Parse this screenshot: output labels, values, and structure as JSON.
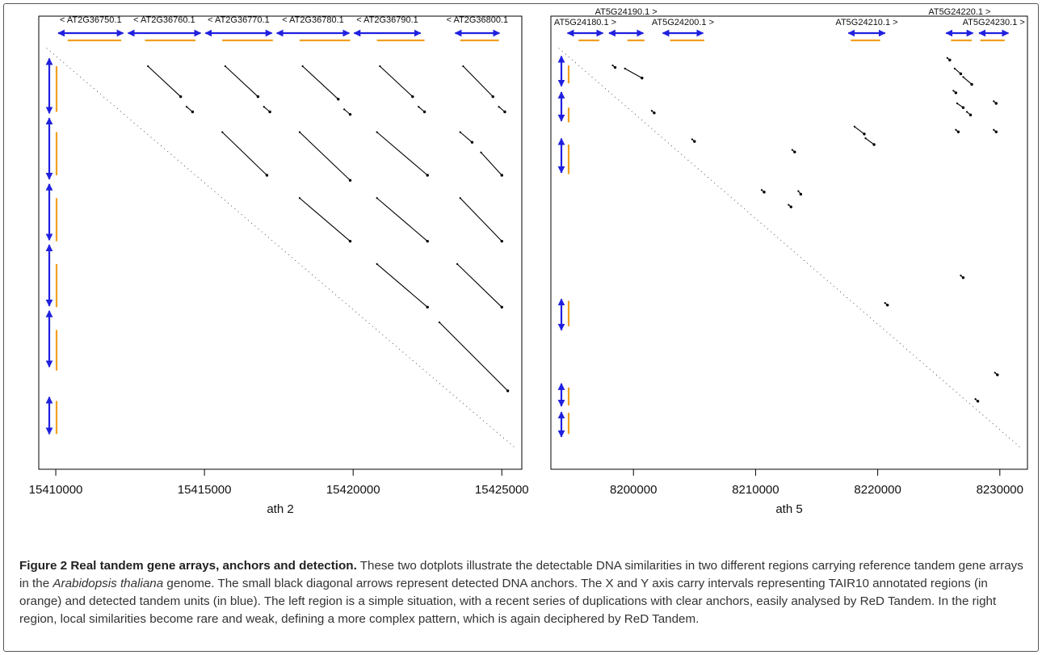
{
  "caption": {
    "label": "Figure 2",
    "title": "Real tandem gene arrays, anchors and detection.",
    "text_1": "These two dotplots illustrate the detectable DNA similarities in two different regions carrying reference tandem gene arrays in the",
    "species": "Arabidopsis thaliana",
    "text_2": "genome. The small black diagonal arrows represent detected DNA anchors. The X and Y axis carry intervals representing TAIR10 annotated regions (in orange) and detected tandem units (in blue). The left region is a simple situation, with a recent series of duplications with clear anchors, easily analysed by ReD Tandem. In the right region, local similarities become rare and weak, defining a more complex pattern, which is again deciphered by ReD Tandem."
  },
  "colors": {
    "annotated": "#f0a020",
    "tandem": "#2020e0",
    "anchor": "#000000"
  },
  "chart_data": [
    {
      "type": "scatter",
      "xlabel": "ath 2",
      "xlim": [
        15409700,
        15425400
      ],
      "ylim": [
        15409700,
        15425400
      ],
      "xticks": [
        15410000,
        15415000,
        15420000,
        15425000
      ],
      "tick_labels": [
        "15410000",
        "15415000",
        "15420000",
        "15425000"
      ],
      "genes": [
        {
          "name": "< AT2G36750.1",
          "start": 15410000,
          "end": 15412350
        },
        {
          "name": "< AT2G36760.1",
          "start": 15412350,
          "end": 15414950
        },
        {
          "name": "< AT2G36770.1",
          "start": 15414950,
          "end": 15417350
        },
        {
          "name": "< AT2G36780.1",
          "start": 15417350,
          "end": 15419950
        },
        {
          "name": "< AT2G36790.1",
          "start": 15419950,
          "end": 15422350
        },
        {
          "name": "< AT2G36800.1",
          "start": 15423350,
          "end": 15425000
        }
      ],
      "annotations": [
        {
          "start": 15410400,
          "end": 15412200
        },
        {
          "start": 15413000,
          "end": 15414700
        },
        {
          "start": 15415600,
          "end": 15417300
        },
        {
          "start": 15418200,
          "end": 15419900
        },
        {
          "start": 15420800,
          "end": 15422400
        },
        {
          "start": 15423600,
          "end": 15424900
        }
      ],
      "anchors": [
        {
          "x1": 15413100,
          "y1": 15410400,
          "x2": 15414200,
          "y2": 15411600
        },
        {
          "x1": 15414400,
          "y1": 15412000,
          "x2": 15414600,
          "y2": 15412200
        },
        {
          "x1": 15415700,
          "y1": 15410400,
          "x2": 15416800,
          "y2": 15411600
        },
        {
          "x1": 15417000,
          "y1": 15412000,
          "x2": 15417200,
          "y2": 15412200
        },
        {
          "x1": 15418300,
          "y1": 15410400,
          "x2": 15419500,
          "y2": 15411700
        },
        {
          "x1": 15419700,
          "y1": 15412100,
          "x2": 15419900,
          "y2": 15412300
        },
        {
          "x1": 15420900,
          "y1": 15410400,
          "x2": 15422000,
          "y2": 15411600
        },
        {
          "x1": 15422200,
          "y1": 15412000,
          "x2": 15422400,
          "y2": 15412200
        },
        {
          "x1": 15423700,
          "y1": 15410400,
          "x2": 15424700,
          "y2": 15411600
        },
        {
          "x1": 15424900,
          "y1": 15412000,
          "x2": 15425100,
          "y2": 15412200
        },
        {
          "x1": 15415600,
          "y1": 15413000,
          "x2": 15417100,
          "y2": 15414700
        },
        {
          "x1": 15418200,
          "y1": 15413000,
          "x2": 15419900,
          "y2": 15414900
        },
        {
          "x1": 15420800,
          "y1": 15413000,
          "x2": 15422500,
          "y2": 15414700
        },
        {
          "x1": 15423600,
          "y1": 15413000,
          "x2": 15424000,
          "y2": 15413400
        },
        {
          "x1": 15424300,
          "y1": 15413800,
          "x2": 15425000,
          "y2": 15414700
        },
        {
          "x1": 15418200,
          "y1": 15415600,
          "x2": 15419900,
          "y2": 15417300
        },
        {
          "x1": 15420800,
          "y1": 15415600,
          "x2": 15422500,
          "y2": 15417300
        },
        {
          "x1": 15423600,
          "y1": 15415600,
          "x2": 15425000,
          "y2": 15417300
        },
        {
          "x1": 15420800,
          "y1": 15418200,
          "x2": 15422500,
          "y2": 15419900
        },
        {
          "x1": 15423500,
          "y1": 15418200,
          "x2": 15425000,
          "y2": 15419900
        },
        {
          "x1": 15422900,
          "y1": 15420500,
          "x2": 15425200,
          "y2": 15423200
        }
      ]
    },
    {
      "type": "scatter",
      "xlabel": "ath 5",
      "xlim": [
        8193900,
        8231600
      ],
      "ylim": [
        8193900,
        8231600
      ],
      "xticks": [
        8200000,
        8210000,
        8220000,
        8230000
      ],
      "tick_labels": [
        "8200000",
        "8210000",
        "8220000",
        "8230000"
      ],
      "genes": [
        {
          "name": "AT5G24180.1 >",
          "start": 8194400,
          "end": 8197700
        },
        {
          "name": "AT5G24190.1 >",
          "start": 8197800,
          "end": 8201000
        },
        {
          "name": "AT5G24200.1 >",
          "start": 8202200,
          "end": 8205900
        },
        {
          "name": "AT5G24210.1 >",
          "start": 8217400,
          "end": 8220800
        },
        {
          "name": "AT5G24220.1 >",
          "start": 8225400,
          "end": 8228000
        },
        {
          "name": "AT5G24230.1 >",
          "start": 8228100,
          "end": 8230900
        }
      ],
      "annotations": [
        {
          "start": 8195500,
          "end": 8197200
        },
        {
          "start": 8199500,
          "end": 8200900
        },
        {
          "start": 8203000,
          "end": 8205800
        },
        {
          "start": 8217800,
          "end": 8220200
        },
        {
          "start": 8226000,
          "end": 8227700
        },
        {
          "start": 8228400,
          "end": 8230400
        }
      ],
      "anchors": [
        {
          "x1": 8198300,
          "y1": 8195500,
          "x2": 8198500,
          "y2": 8195700
        },
        {
          "x1": 8199300,
          "y1": 8195800,
          "x2": 8200700,
          "y2": 8196700
        },
        {
          "x1": 8201500,
          "y1": 8199800,
          "x2": 8201700,
          "y2": 8200000
        },
        {
          "x1": 8204800,
          "y1": 8202500,
          "x2": 8205000,
          "y2": 8202700
        },
        {
          "x1": 8213000,
          "y1": 8203500,
          "x2": 8213200,
          "y2": 8203700
        },
        {
          "x1": 8210500,
          "y1": 8207300,
          "x2": 8210700,
          "y2": 8207500
        },
        {
          "x1": 8213500,
          "y1": 8207400,
          "x2": 8213700,
          "y2": 8207700
        },
        {
          "x1": 8212700,
          "y1": 8208700,
          "x2": 8212900,
          "y2": 8208900
        },
        {
          "x1": 8218100,
          "y1": 8201300,
          "x2": 8218900,
          "y2": 8202000
        },
        {
          "x1": 8219000,
          "y1": 8202400,
          "x2": 8219700,
          "y2": 8203000
        },
        {
          "x1": 8220600,
          "y1": 8218000,
          "x2": 8220800,
          "y2": 8218200
        },
        {
          "x1": 8225700,
          "y1": 8194800,
          "x2": 8225900,
          "y2": 8195000
        },
        {
          "x1": 8226300,
          "y1": 8195800,
          "x2": 8226800,
          "y2": 8196300
        },
        {
          "x1": 8227000,
          "y1": 8196600,
          "x2": 8227700,
          "y2": 8197300
        },
        {
          "x1": 8226200,
          "y1": 8197900,
          "x2": 8226400,
          "y2": 8198100
        },
        {
          "x1": 8226500,
          "y1": 8199100,
          "x2": 8227000,
          "y2": 8199500
        },
        {
          "x1": 8227300,
          "y1": 8199900,
          "x2": 8227600,
          "y2": 8200200
        },
        {
          "x1": 8229500,
          "y1": 8198900,
          "x2": 8229700,
          "y2": 8199100
        },
        {
          "x1": 8226400,
          "y1": 8201600,
          "x2": 8226600,
          "y2": 8201800
        },
        {
          "x1": 8229500,
          "y1": 8201600,
          "x2": 8229700,
          "y2": 8201800
        },
        {
          "x1": 8226800,
          "y1": 8215400,
          "x2": 8227000,
          "y2": 8215600
        },
        {
          "x1": 8229600,
          "y1": 8224600,
          "x2": 8229800,
          "y2": 8224800
        },
        {
          "x1": 8228000,
          "y1": 8227100,
          "x2": 8228200,
          "y2": 8227300
        }
      ]
    }
  ]
}
